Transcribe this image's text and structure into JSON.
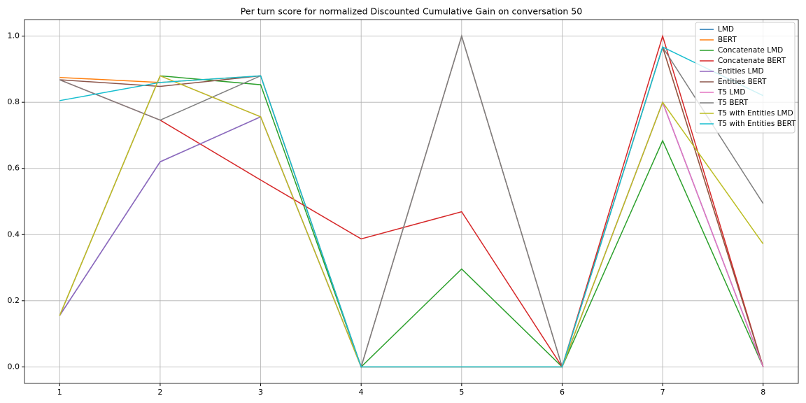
{
  "chart_data": {
    "type": "line",
    "title": "Per turn score for normalized Discounted Cumulative Gain on conversation 50",
    "x": [
      1,
      2,
      3,
      4,
      5,
      6,
      7,
      8
    ],
    "xlim": [
      0.65,
      8.35
    ],
    "xticks": [
      1,
      2,
      3,
      4,
      5,
      6,
      7,
      8
    ],
    "ylim": [
      -0.05,
      1.05
    ],
    "yticks": [
      {
        "value": 0,
        "label": "0.0"
      },
      0.2,
      0.4,
      0.6,
      0.8,
      {
        "value": 1,
        "label": "1.0"
      }
    ],
    "grid": true,
    "legend": "upper-right",
    "series": [
      {
        "name": "LMD",
        "color": "#1f77b4",
        "values": [
          0.155,
          0.62,
          0.756,
          0,
          0,
          0,
          0.8,
          0
        ]
      },
      {
        "name": "BERT",
        "color": "#ff7f0e",
        "values": [
          0.875,
          0.86,
          0.88,
          0,
          0,
          0,
          0.967,
          0
        ]
      },
      {
        "name": "Concatenate LMD",
        "color": "#2ca02c",
        "values": [
          0.155,
          0.88,
          0.853,
          0,
          0.296,
          0,
          0.684,
          0
        ]
      },
      {
        "name": "Concatenate BERT",
        "color": "#d62728",
        "values": [
          0.868,
          0.746,
          0.565,
          0.387,
          0.469,
          0,
          1.0,
          0
        ]
      },
      {
        "name": "Entities LMD",
        "color": "#9467bd",
        "values": [
          0.155,
          0.62,
          0.756,
          0,
          0,
          0,
          0.8,
          0
        ]
      },
      {
        "name": "Entities BERT",
        "color": "#8c564b",
        "values": [
          0.868,
          0.848,
          0.88,
          0,
          1.0,
          0,
          0.967,
          0
        ]
      },
      {
        "name": "T5 LMD",
        "color": "#e377c2",
        "values": [
          0.155,
          0.88,
          0.756,
          0,
          0,
          0,
          0.8,
          0
        ]
      },
      {
        "name": "T5 BERT",
        "color": "#7f7f7f",
        "values": [
          0.868,
          0.746,
          0.88,
          0,
          1.0,
          0,
          0.967,
          0.494
        ]
      },
      {
        "name": "T5 with Entities LMD",
        "color": "#bcbd22",
        "values": [
          0.155,
          0.88,
          0.756,
          0,
          0,
          0,
          0.8,
          0.372
        ]
      },
      {
        "name": "T5 with Entities BERT",
        "color": "#17becf",
        "values": [
          0.805,
          0.86,
          0.88,
          0,
          0,
          0,
          0.967,
          0.82
        ]
      }
    ]
  }
}
